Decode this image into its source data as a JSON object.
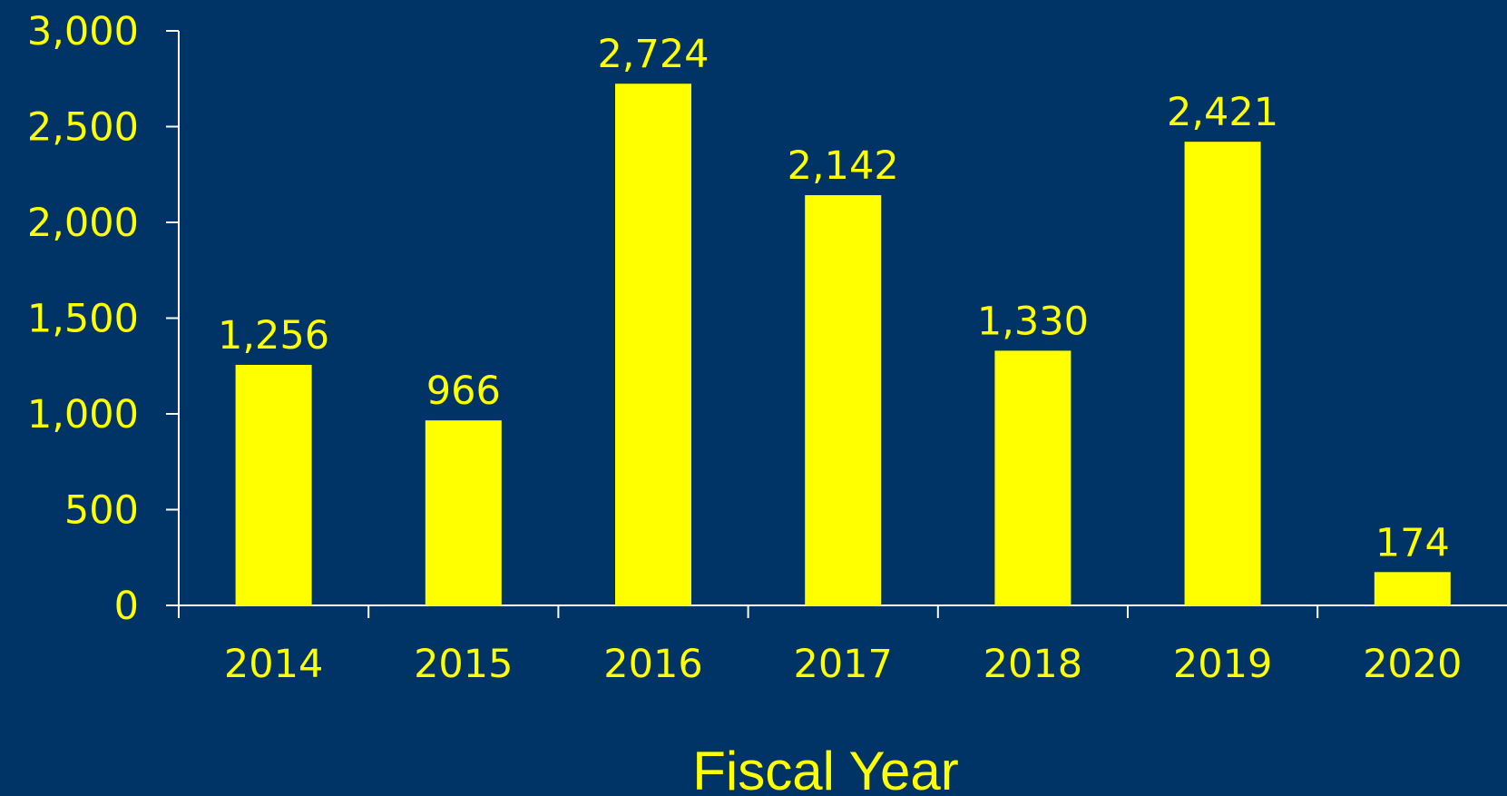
{
  "colors": {
    "background": "#003366",
    "bar": "#ffff00",
    "text": "#ffff00",
    "axis": "#ffffff"
  },
  "chart_data": {
    "type": "bar",
    "title": "",
    "xlabel": "Fiscal Year",
    "ylabel": "",
    "categories": [
      "2014",
      "2015",
      "2016",
      "2017",
      "2018",
      "2019",
      "2020"
    ],
    "values": [
      1256,
      966,
      2724,
      2142,
      1330,
      2421,
      174
    ],
    "value_labels": [
      "1,256",
      "966",
      "2,724",
      "2,142",
      "1,330",
      "2,421",
      "174"
    ],
    "ylim": [
      0,
      3000
    ],
    "yticks": [
      0,
      500,
      1000,
      1500,
      2000,
      2500,
      3000
    ],
    "ytick_labels": [
      "0",
      "500",
      "1,000",
      "1,500",
      "2,000",
      "2,500",
      "3,000"
    ],
    "grid": false,
    "legend": "none"
  }
}
